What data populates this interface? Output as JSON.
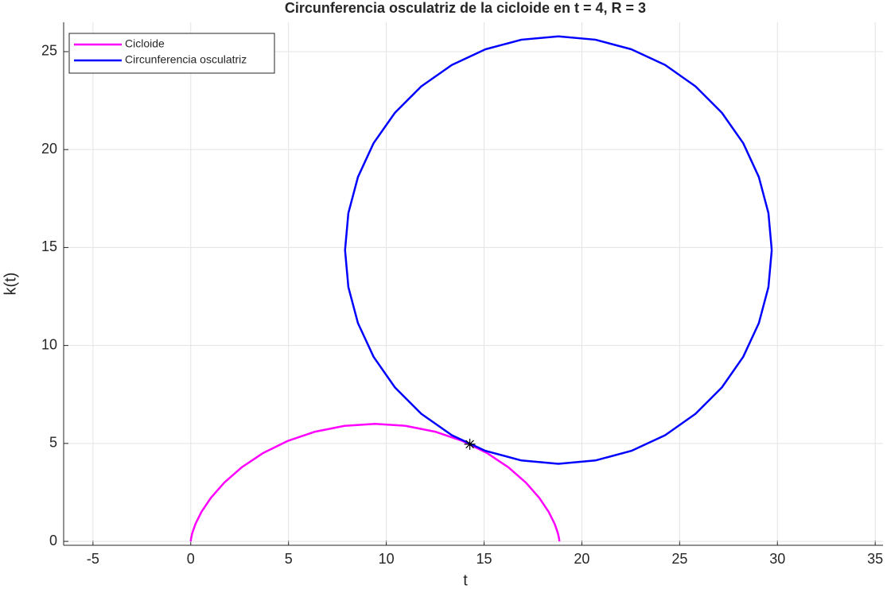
{
  "chart_data": {
    "type": "line",
    "title": "Circunferencia osculatriz de la cicloide en t = 4, R = 3",
    "x_label": "t",
    "y_label": "k(t)",
    "xlim": [
      -6.5,
      35.4
    ],
    "ylim": [
      -0.2,
      26.5
    ],
    "xticks": [
      -5,
      0,
      5,
      10,
      15,
      20,
      25,
      30,
      35
    ],
    "yticks": [
      0,
      5,
      10,
      15,
      20,
      25
    ],
    "grid": true,
    "legend": "top-left",
    "series": [
      {
        "name": "Cicloide",
        "color": "#ff00ff",
        "x": [
          0,
          0.009,
          0.071,
          0.235,
          0.544,
          1.029,
          1.712,
          2.6,
          3.685,
          4.947,
          6.354,
          7.863,
          9.425,
          10.987,
          12.496,
          13.903,
          15.165,
          16.25,
          17.138,
          17.821,
          18.306,
          18.615,
          18.779,
          18.841,
          18.85
        ],
        "values": [
          0,
          0.102,
          0.402,
          0.879,
          1.5,
          2.224,
          3,
          3.776,
          4.5,
          5.121,
          5.598,
          5.898,
          6,
          5.898,
          5.598,
          5.121,
          4.5,
          3.776,
          3,
          2.224,
          1.5,
          0.879,
          0.402,
          0.102,
          0
        ]
      },
      {
        "name": "Circunferencia osculatriz",
        "color": "#0000ff",
        "x": [
          29.71,
          29.54,
          29.05,
          28.25,
          27.16,
          25.81,
          24.26,
          22.53,
          20.69,
          18.8,
          16.91,
          15.07,
          13.35,
          11.79,
          10.44,
          9.35,
          8.55,
          8.06,
          7.89,
          8.06,
          8.55,
          9.35,
          10.44,
          11.79,
          13.35,
          15.07,
          16.91,
          18.8,
          20.69,
          22.53,
          24.26,
          25.81,
          27.16,
          28.25,
          29.05,
          29.54,
          29.71
        ],
        "values": [
          14.87,
          16.76,
          18.6,
          20.33,
          21.88,
          23.23,
          24.32,
          25.12,
          25.61,
          25.78,
          25.61,
          25.12,
          24.32,
          23.23,
          21.88,
          20.33,
          18.6,
          16.76,
          14.87,
          12.98,
          11.14,
          9.42,
          7.86,
          6.51,
          5.42,
          4.62,
          4.13,
          3.96,
          4.13,
          4.62,
          5.42,
          6.51,
          7.86,
          9.42,
          11.14,
          12.98,
          14.87
        ]
      }
    ],
    "point": {
      "x": 14.27,
      "y": 4.96,
      "color": "#000000"
    }
  }
}
